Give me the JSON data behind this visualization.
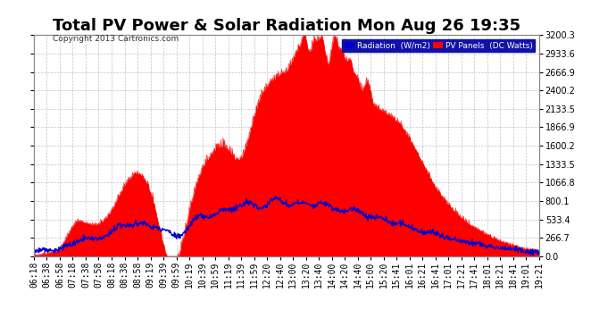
{
  "title": "Total PV Power & Solar Radiation Mon Aug 26 19:35",
  "copyright": "Copyright 2013 Cartronics.com",
  "ylim": [
    0,
    3200.3
  ],
  "yticks": [
    0.0,
    266.7,
    533.4,
    800.1,
    1066.8,
    1333.5,
    1600.2,
    1866.9,
    2133.5,
    2400.2,
    2666.9,
    2933.6,
    3200.3
  ],
  "bg_color": "#ffffff",
  "grid_color": "#aaaaaa",
  "pv_color": "#ff0000",
  "radiation_color": "#0000cc",
  "legend_radiation_bg": "#0000cc",
  "legend_pv_bg": "#ff0000",
  "legend_radiation_text": "Radiation  (W/m2)",
  "legend_pv_text": "PV Panels  (DC Watts)",
  "title_fontsize": 13,
  "tick_fontsize": 7,
  "x_label_rotation": 90,
  "time_labels": [
    "06:18",
    "06:38",
    "06:58",
    "07:18",
    "07:38",
    "07:58",
    "08:18",
    "08:38",
    "08:58",
    "09:19",
    "09:39",
    "09:59",
    "10:19",
    "10:39",
    "10:59",
    "11:19",
    "11:39",
    "11:59",
    "12:20",
    "12:40",
    "13:00",
    "13:20",
    "13:40",
    "14:00",
    "14:20",
    "14:40",
    "15:00",
    "15:20",
    "15:41",
    "16:01",
    "16:21",
    "16:41",
    "17:01",
    "17:21",
    "17:41",
    "18:01",
    "18:21",
    "18:41",
    "19:01",
    "19:21"
  ]
}
